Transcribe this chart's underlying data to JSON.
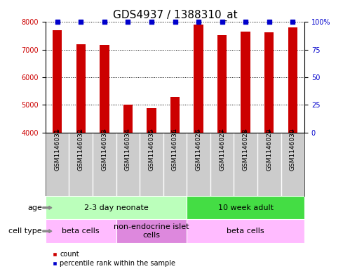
{
  "title": "GDS4937 / 1388310_at",
  "samples": [
    "GSM1146031",
    "GSM1146032",
    "GSM1146033",
    "GSM1146034",
    "GSM1146035",
    "GSM1146036",
    "GSM1146026",
    "GSM1146027",
    "GSM1146028",
    "GSM1146029",
    "GSM1146030"
  ],
  "counts": [
    7700,
    7200,
    7175,
    5000,
    4870,
    5300,
    7900,
    7530,
    7650,
    7630,
    7800
  ],
  "ylim_left": [
    4000,
    8000
  ],
  "ylim_right": [
    0,
    100
  ],
  "yticks_left": [
    4000,
    5000,
    6000,
    7000,
    8000
  ],
  "yticks_right": [
    0,
    25,
    50,
    75,
    100
  ],
  "bar_color": "#cc0000",
  "dot_color": "#0000cc",
  "sample_bg_color": "#cccccc",
  "age_groups": [
    {
      "label": "2-3 day neonate",
      "start": 0,
      "end": 6,
      "color": "#bbffbb"
    },
    {
      "label": "10 week adult",
      "start": 6,
      "end": 11,
      "color": "#44dd44"
    }
  ],
  "cell_type_groups": [
    {
      "label": "beta cells",
      "start": 0,
      "end": 3,
      "color": "#ffbbff"
    },
    {
      "label": "non-endocrine islet\ncells",
      "start": 3,
      "end": 6,
      "color": "#dd88dd"
    },
    {
      "label": "beta cells",
      "start": 6,
      "end": 11,
      "color": "#ffbbff"
    }
  ],
  "legend_items": [
    {
      "color": "#cc0000",
      "label": "count"
    },
    {
      "color": "#0000cc",
      "label": "percentile rank within the sample"
    }
  ],
  "title_fontsize": 11,
  "tick_fontsize": 7,
  "annot_fontsize": 8,
  "sample_fontsize": 6.5,
  "bar_width": 0.4
}
